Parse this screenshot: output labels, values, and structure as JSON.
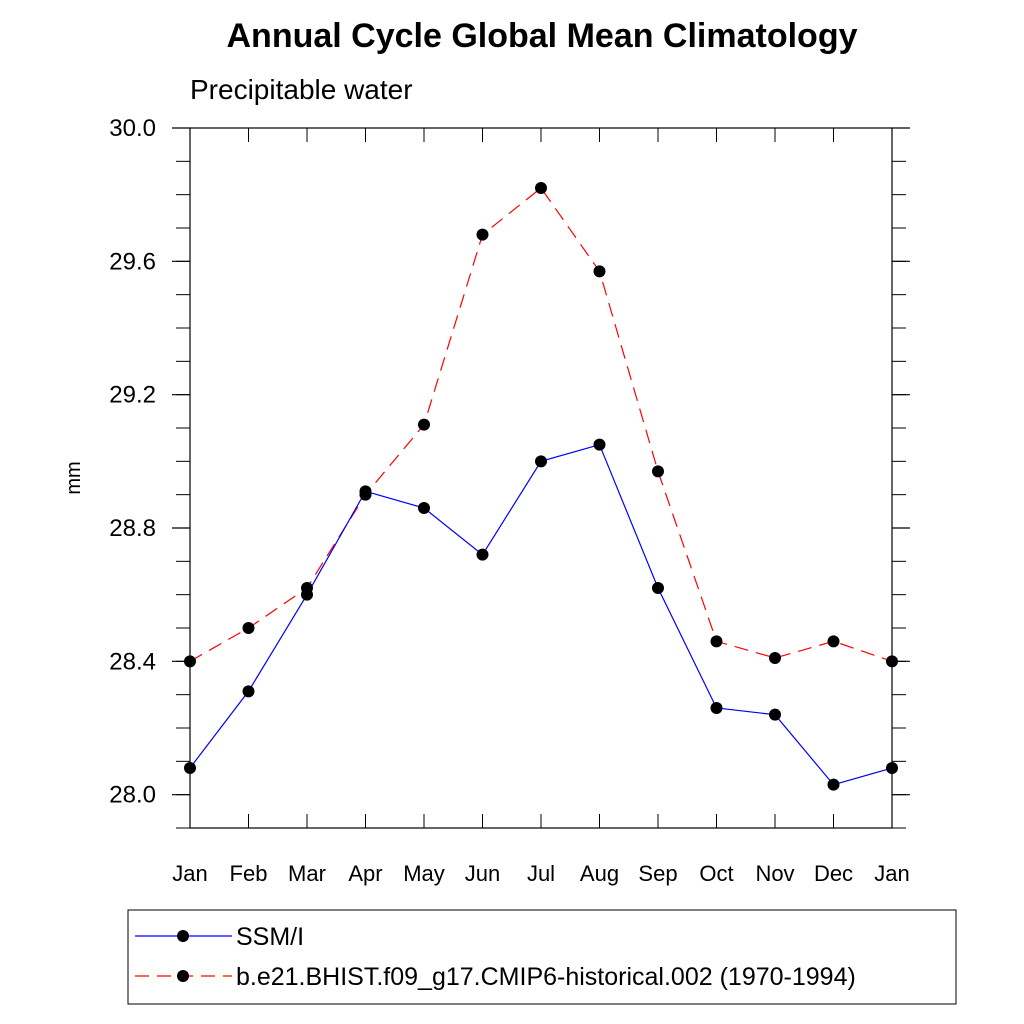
{
  "chart_data": {
    "type": "line",
    "title": "Annual Cycle Global Mean Climatology",
    "subtitle": "Precipitable water",
    "xlabel": "",
    "ylabel": "mm",
    "categories": [
      "Jan",
      "Feb",
      "Mar",
      "Apr",
      "May",
      "Jun",
      "Jul",
      "Aug",
      "Sep",
      "Oct",
      "Nov",
      "Dec",
      "Jan"
    ],
    "ylim": [
      27.9,
      30.0
    ],
    "yticks": [
      "30.0",
      "29.6",
      "29.2",
      "28.8",
      "28.4",
      "28.0"
    ],
    "ytick_values": [
      30.0,
      29.6,
      29.2,
      28.8,
      28.4,
      28.0
    ],
    "grid": false,
    "legend_position": "bottom",
    "series": [
      {
        "name": "SSM/I",
        "color": "#0000ff",
        "style": "solid",
        "values": [
          28.08,
          28.31,
          28.6,
          28.91,
          28.86,
          28.72,
          29.0,
          29.05,
          28.62,
          28.26,
          28.24,
          28.03,
          28.08
        ]
      },
      {
        "name": "b.e21.BHIST.f09_g17.CMIP6-historical.002 (1970-1994)",
        "color": "#ff0000",
        "style": "dashed",
        "values": [
          28.4,
          28.5,
          28.62,
          28.9,
          29.11,
          29.68,
          29.82,
          29.57,
          28.97,
          28.46,
          28.41,
          28.46,
          28.4
        ]
      }
    ]
  }
}
